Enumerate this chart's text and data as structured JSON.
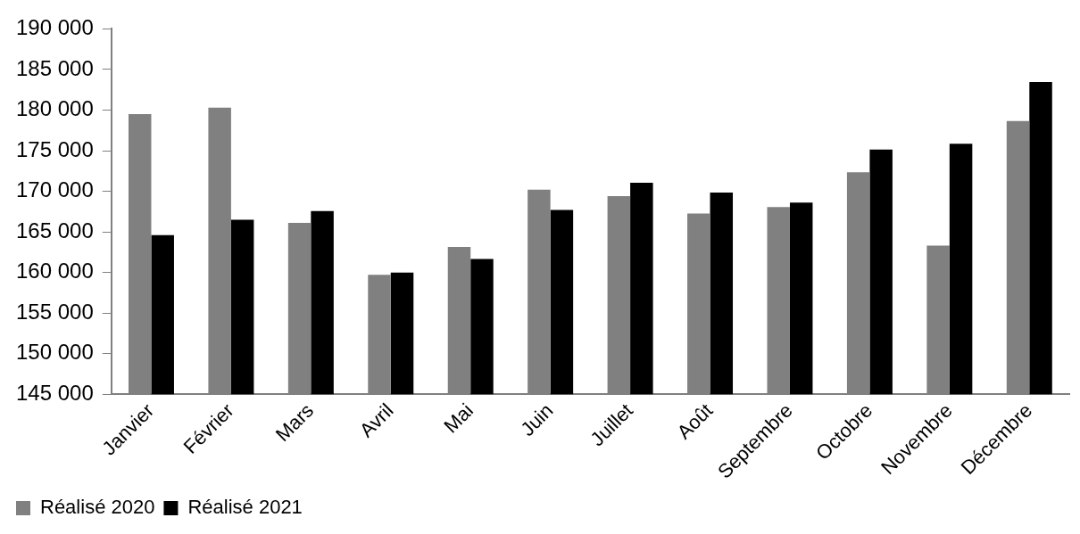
{
  "chart_data": {
    "type": "bar",
    "categories": [
      "Janvier",
      "Février",
      "Mars",
      "Avril",
      "Mai",
      "Juin",
      "Juillet",
      "Août",
      "Septembre",
      "Octobre",
      "Novembre",
      "Décembre"
    ],
    "series": [
      {
        "name": "Réalisé 2020",
        "color": "#808080",
        "values": [
          179500,
          180300,
          166100,
          159700,
          163150,
          170200,
          169400,
          167250,
          168050,
          172350,
          163300,
          178650
        ]
      },
      {
        "name": "Réalisé 2021",
        "color": "#000000",
        "values": [
          164600,
          166500,
          167550,
          160000,
          161650,
          167700,
          171050,
          169850,
          168600,
          175150,
          175850,
          183450
        ]
      }
    ],
    "ylim": [
      145000,
      190000
    ],
    "yticks": [
      {
        "value": 145000,
        "label": "145 000"
      },
      {
        "value": 150000,
        "label": "150 000"
      },
      {
        "value": 155000,
        "label": "155 000"
      },
      {
        "value": 160000,
        "label": "160 000"
      },
      {
        "value": 165000,
        "label": "165 000"
      },
      {
        "value": 170000,
        "label": "170 000"
      },
      {
        "value": 175000,
        "label": "175 000"
      },
      {
        "value": 180000,
        "label": "180 000"
      },
      {
        "value": 185000,
        "label": "185 000"
      },
      {
        "value": 190000,
        "label": "190 000"
      }
    ],
    "grid": false,
    "legend": "bottom left"
  }
}
